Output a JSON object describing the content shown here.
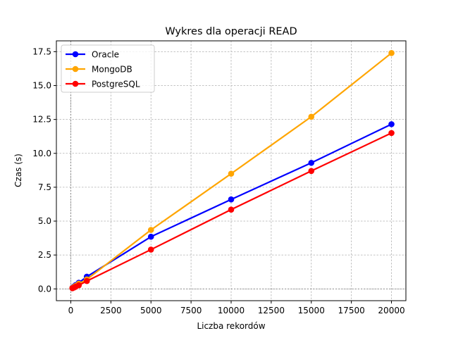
{
  "chart_data": {
    "type": "line",
    "title": "Wykres dla operacji READ",
    "xlabel": "Liczba rekordów",
    "ylabel": "Czas (s)",
    "xlim": [
      -900,
      20900
    ],
    "ylim": [
      -0.87,
      18.3
    ],
    "xticks": [
      0,
      2500,
      5000,
      7500,
      10000,
      12500,
      15000,
      17500,
      20000
    ],
    "yticks": [
      0.0,
      2.5,
      5.0,
      7.5,
      10.0,
      12.5,
      15.0,
      17.5
    ],
    "xtick_labels": [
      "0",
      "2500",
      "5000",
      "7500",
      "10000",
      "12500",
      "15000",
      "17500",
      "20000"
    ],
    "ytick_labels": [
      "0.0",
      "2.5",
      "5.0",
      "7.5",
      "10.0",
      "12.5",
      "15.0",
      "17.5"
    ],
    "grid": true,
    "legend_position": "upper-left",
    "x": [
      100,
      200,
      300,
      500,
      1000,
      5000,
      10000,
      15000,
      20000
    ],
    "series": [
      {
        "name": "Oracle",
        "color": "#0000ff",
        "values": [
          0.08,
          0.18,
          0.28,
          0.45,
          0.9,
          3.85,
          6.6,
          9.3,
          12.15
        ]
      },
      {
        "name": "MongoDB",
        "color": "#ffa500",
        "values": [
          0.07,
          0.15,
          0.22,
          0.38,
          0.7,
          4.35,
          8.5,
          12.7,
          17.4
        ]
      },
      {
        "name": "PostgreSQL",
        "color": "#ff0000",
        "values": [
          0.05,
          0.1,
          0.16,
          0.27,
          0.58,
          2.9,
          5.85,
          8.7,
          11.5
        ]
      }
    ]
  }
}
